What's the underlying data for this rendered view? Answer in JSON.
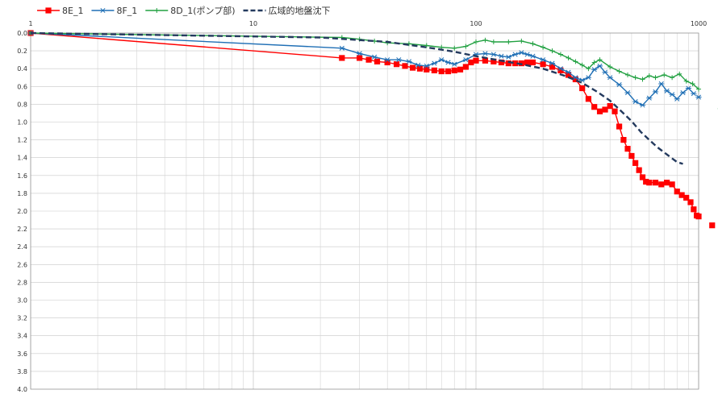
{
  "chart_data": {
    "type": "line",
    "title": "",
    "xlabel": "",
    "ylabel": "",
    "x_scale": "log",
    "xlim": [
      1,
      1000
    ],
    "ylim": [
      0,
      4.0
    ],
    "y_inverted": true,
    "grid": true,
    "x_tick_labels": [
      "1",
      "10",
      "100",
      "1000"
    ],
    "y_tick_labels": [
      "0.0",
      "0.2",
      "0.4",
      "0.6",
      "0.8",
      "1.0",
      "1.2",
      "1.4",
      "1.6",
      "1.8",
      "2.0",
      "2.2",
      "2.4",
      "2.6",
      "2.8",
      "3.0",
      "3.2",
      "3.4",
      "3.6",
      "3.8",
      "4.0"
    ],
    "legend_position": "top-left",
    "series": [
      {
        "name": "8E_1",
        "color": "#ff0000",
        "marker": "square",
        "dash": "solid",
        "points": [
          [
            1,
            0.0
          ],
          [
            25,
            0.28
          ],
          [
            30,
            0.28
          ],
          [
            33,
            0.3
          ],
          [
            36,
            0.32
          ],
          [
            40,
            0.33
          ],
          [
            44,
            0.35
          ],
          [
            48,
            0.37
          ],
          [
            52,
            0.39
          ],
          [
            56,
            0.4
          ],
          [
            60,
            0.41
          ],
          [
            65,
            0.42
          ],
          [
            70,
            0.43
          ],
          [
            75,
            0.43
          ],
          [
            80,
            0.42
          ],
          [
            85,
            0.41
          ],
          [
            90,
            0.38
          ],
          [
            95,
            0.33
          ],
          [
            100,
            0.31
          ],
          [
            110,
            0.31
          ],
          [
            120,
            0.32
          ],
          [
            130,
            0.33
          ],
          [
            140,
            0.34
          ],
          [
            150,
            0.34
          ],
          [
            160,
            0.34
          ],
          [
            170,
            0.33
          ],
          [
            180,
            0.33
          ],
          [
            200,
            0.35
          ],
          [
            220,
            0.38
          ],
          [
            240,
            0.42
          ],
          [
            260,
            0.47
          ],
          [
            280,
            0.52
          ],
          [
            300,
            0.62
          ],
          [
            320,
            0.74
          ],
          [
            340,
            0.83
          ],
          [
            360,
            0.88
          ],
          [
            380,
            0.86
          ],
          [
            400,
            0.82
          ],
          [
            420,
            0.88
          ],
          [
            440,
            1.05
          ],
          [
            460,
            1.2
          ],
          [
            480,
            1.3
          ],
          [
            500,
            1.38
          ],
          [
            520,
            1.46
          ],
          [
            540,
            1.54
          ],
          [
            560,
            1.62
          ],
          [
            580,
            1.67
          ],
          [
            600,
            1.68
          ],
          [
            640,
            1.68
          ],
          [
            680,
            1.7
          ],
          [
            720,
            1.68
          ],
          [
            760,
            1.7
          ],
          [
            800,
            1.78
          ],
          [
            840,
            1.82
          ],
          [
            880,
            1.85
          ],
          [
            920,
            1.9
          ],
          [
            950,
            1.98
          ],
          [
            980,
            2.05
          ],
          [
            1000,
            2.06
          ],
          [
            1150,
            2.16
          ]
        ]
      },
      {
        "name": "8F_1",
        "color": "#1f6fb5",
        "marker": "star",
        "dash": "solid",
        "points": [
          [
            1,
            0.0
          ],
          [
            25,
            0.17
          ],
          [
            30,
            0.23
          ],
          [
            35,
            0.27
          ],
          [
            40,
            0.3
          ],
          [
            45,
            0.3
          ],
          [
            50,
            0.32
          ],
          [
            55,
            0.36
          ],
          [
            60,
            0.37
          ],
          [
            65,
            0.34
          ],
          [
            70,
            0.3
          ],
          [
            75,
            0.33
          ],
          [
            80,
            0.35
          ],
          [
            90,
            0.3
          ],
          [
            100,
            0.24
          ],
          [
            110,
            0.23
          ],
          [
            120,
            0.24
          ],
          [
            130,
            0.26
          ],
          [
            140,
            0.27
          ],
          [
            150,
            0.24
          ],
          [
            160,
            0.22
          ],
          [
            170,
            0.24
          ],
          [
            180,
            0.26
          ],
          [
            200,
            0.3
          ],
          [
            220,
            0.34
          ],
          [
            240,
            0.4
          ],
          [
            260,
            0.44
          ],
          [
            280,
            0.5
          ],
          [
            300,
            0.53
          ],
          [
            320,
            0.5
          ],
          [
            340,
            0.41
          ],
          [
            360,
            0.37
          ],
          [
            380,
            0.44
          ],
          [
            400,
            0.5
          ],
          [
            440,
            0.58
          ],
          [
            480,
            0.67
          ],
          [
            520,
            0.77
          ],
          [
            560,
            0.81
          ],
          [
            600,
            0.73
          ],
          [
            640,
            0.66
          ],
          [
            680,
            0.57
          ],
          [
            720,
            0.65
          ],
          [
            760,
            0.69
          ],
          [
            800,
            0.74
          ],
          [
            850,
            0.67
          ],
          [
            900,
            0.62
          ],
          [
            950,
            0.68
          ],
          [
            1000,
            0.72
          ]
        ]
      },
      {
        "name": "8D_1(ポンプ部)",
        "color": "#20a040",
        "marker": "plus",
        "dash": "solid",
        "points": [
          [
            1,
            0.0
          ],
          [
            25,
            0.05
          ],
          [
            30,
            0.07
          ],
          [
            35,
            0.09
          ],
          [
            40,
            0.11
          ],
          [
            50,
            0.12
          ],
          [
            60,
            0.14
          ],
          [
            70,
            0.16
          ],
          [
            80,
            0.17
          ],
          [
            90,
            0.15
          ],
          [
            100,
            0.1
          ],
          [
            110,
            0.08
          ],
          [
            120,
            0.1
          ],
          [
            140,
            0.1
          ],
          [
            160,
            0.09
          ],
          [
            180,
            0.12
          ],
          [
            200,
            0.16
          ],
          [
            220,
            0.2
          ],
          [
            240,
            0.24
          ],
          [
            260,
            0.28
          ],
          [
            280,
            0.32
          ],
          [
            300,
            0.36
          ],
          [
            320,
            0.4
          ],
          [
            340,
            0.33
          ],
          [
            360,
            0.3
          ],
          [
            400,
            0.38
          ],
          [
            440,
            0.43
          ],
          [
            480,
            0.47
          ],
          [
            520,
            0.5
          ],
          [
            560,
            0.52
          ],
          [
            600,
            0.48
          ],
          [
            640,
            0.5
          ],
          [
            700,
            0.47
          ],
          [
            760,
            0.5
          ],
          [
            820,
            0.46
          ],
          [
            880,
            0.54
          ],
          [
            940,
            0.57
          ],
          [
            1000,
            0.63
          ],
          [
            1250,
            0.85
          ]
        ]
      },
      {
        "name": "広域的地盤沈下",
        "color": "#243a5e",
        "marker": "none",
        "dash": "dashed",
        "points": [
          [
            1,
            0.0
          ],
          [
            20,
            0.05
          ],
          [
            40,
            0.1
          ],
          [
            60,
            0.16
          ],
          [
            80,
            0.21
          ],
          [
            100,
            0.26
          ],
          [
            130,
            0.31
          ],
          [
            160,
            0.35
          ],
          [
            200,
            0.4
          ],
          [
            250,
            0.48
          ],
          [
            300,
            0.56
          ],
          [
            350,
            0.66
          ],
          [
            400,
            0.76
          ],
          [
            450,
            0.88
          ],
          [
            500,
            0.99
          ],
          [
            550,
            1.11
          ],
          [
            600,
            1.2
          ],
          [
            650,
            1.28
          ],
          [
            700,
            1.34
          ],
          [
            800,
            1.45
          ],
          [
            850,
            1.47
          ]
        ]
      }
    ]
  }
}
